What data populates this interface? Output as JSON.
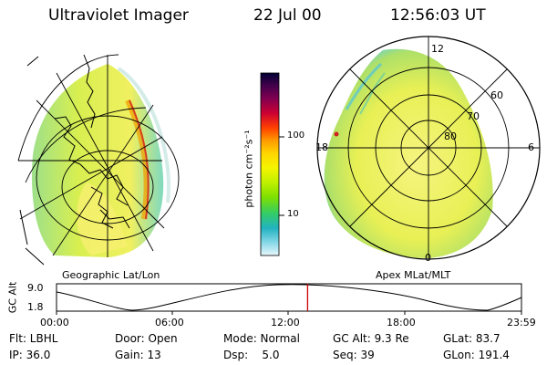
{
  "header": {
    "instrument": "Ultraviolet Imager",
    "date": "22 Jul 00",
    "time": "12:56:03 UT"
  },
  "panels": {
    "left_label": "Geographic Lat/Lon",
    "right_label": "Apex MLat/MLT"
  },
  "polar_plot": {
    "mlt_labels": [
      "12",
      "18",
      "6",
      "0"
    ],
    "mlat_labels": [
      "60",
      "70",
      "80"
    ]
  },
  "colorbar": {
    "unit_label": "photon cm⁻²s⁻¹",
    "tick_labels": [
      "100",
      "10"
    ],
    "colors": [
      "#000033",
      "#44004c",
      "#800050",
      "#cc0033",
      "#ff4000",
      "#ff9a00",
      "#ffd500",
      "#f4f400",
      "#bff000",
      "#7fe000",
      "#33cc66",
      "#22b2c0",
      "#88d8e8",
      "#e8f8fc"
    ]
  },
  "orbit_plot": {
    "ylabel": "GC Alt",
    "ytick_labels": [
      "9.0",
      "1.8"
    ],
    "xtick_labels": [
      "00:00",
      "06:00",
      "12:00",
      "18:00",
      "23:59"
    ],
    "current_time_fraction": 0.54,
    "marker_color": "#cc0000"
  },
  "status": {
    "row1": {
      "filter": "Flt: LBHL",
      "door": "Door: Open",
      "mode": "Mode: Normal",
      "gc_alt": "GC Alt: 9.3 Re",
      "glat": "GLat: 83.7"
    },
    "row2": {
      "ip": "IP: 36.0",
      "gain": "Gain: 13",
      "dsp": "Dsp:    5.0",
      "seq": "Seq: 39",
      "glon": "GLon: 191.4"
    }
  }
}
